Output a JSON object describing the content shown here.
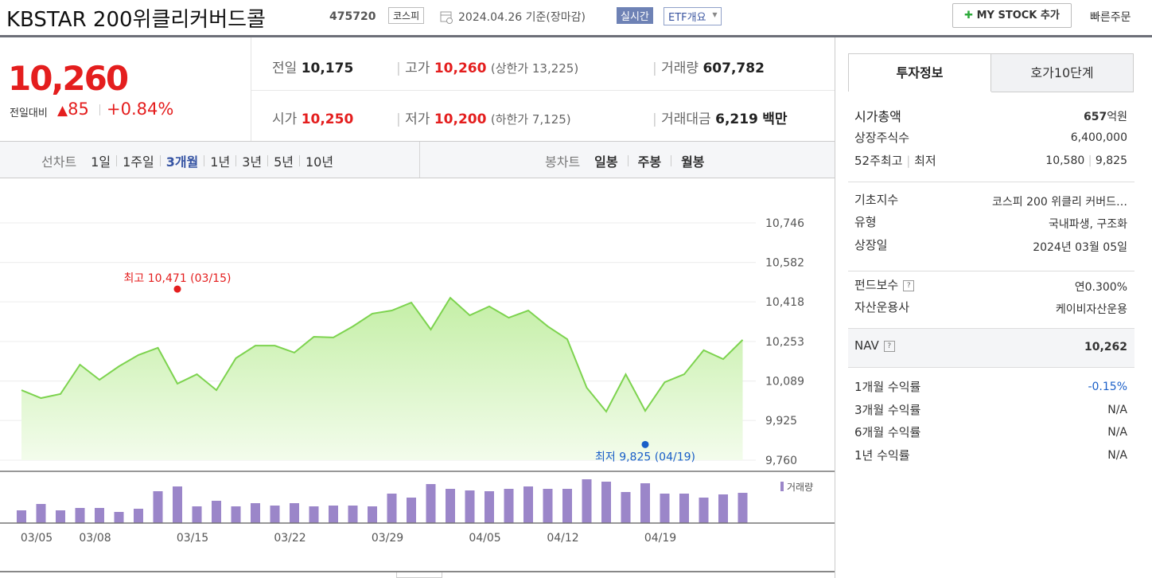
{
  "header": {
    "title": "KBSTAR 200위클리커버드콜",
    "code": "475720",
    "market": "코스피",
    "date": "2024.04.26 기준(장마감)",
    "realtime": "실시간",
    "overview": "ETF개요",
    "mystock": "MY STOCK 추가",
    "quick_order": "빠른주문"
  },
  "quote": {
    "price": "10,260",
    "change_label": "전일대비",
    "change": "85",
    "change_rate": "+0.84%",
    "items": [
      {
        "label": "전일",
        "value": "10,175"
      },
      {
        "label": "고가",
        "value": "10,260",
        "note": "(상한가 13,225)"
      },
      {
        "label": "거래량",
        "value": "607,782"
      },
      {
        "label": "시가",
        "value": "10,250"
      },
      {
        "label": "저가",
        "value": "10,200",
        "note": "(하한가 7,125)"
      },
      {
        "label": "거래대금",
        "value": "6,219",
        "unit": "백만"
      }
    ]
  },
  "tabs": {
    "line_label": "선차트",
    "periods": [
      "1일",
      "1주일",
      "3개월",
      "1년",
      "3년",
      "5년",
      "10년"
    ],
    "selected": "3개월",
    "candle_label": "봉차트",
    "candles": [
      "일봉",
      "주봉",
      "월봉"
    ]
  },
  "chart_data": {
    "type": "area",
    "categories": [
      "03/05",
      null,
      null,
      "03/08",
      null,
      null,
      null,
      null,
      "03/15",
      null,
      null,
      null,
      null,
      "03/22",
      null,
      null,
      null,
      null,
      "03/29",
      null,
      null,
      null,
      null,
      "04/05",
      null,
      null,
      null,
      "04/12",
      null,
      null,
      null,
      null,
      "04/19",
      null,
      null,
      null,
      null,
      null
    ],
    "series": [
      {
        "color": "#7dd34f",
        "values": [
          10051,
          10018,
          10035,
          10157,
          10094,
          10150,
          10197,
          10227,
          10078,
          10117,
          10051,
          10184,
          10236,
          10236,
          10207,
          10273,
          10270,
          10316,
          10369,
          10382,
          10415,
          10303,
          10435,
          10362,
          10399,
          10352,
          10382,
          10316,
          10263,
          10061,
          9962,
          10117,
          9965,
          10084,
          10117,
          10217,
          10180,
          10260
        ]
      }
    ],
    "volume": {
      "name": "거래량",
      "color": "#9b86c9",
      "values": [
        256000,
        384000,
        256000,
        304000,
        304000,
        224000,
        288000,
        640000,
        736000,
        336000,
        448000,
        336000,
        400000,
        352000,
        400000,
        336000,
        352000,
        352000,
        336000,
        592000,
        512000,
        784000,
        688000,
        656000,
        640000,
        688000,
        736000,
        688000,
        688000,
        880000,
        832000,
        624000,
        800000,
        592000,
        592000,
        512000,
        576000,
        607782
      ]
    },
    "ylim": [
      9760,
      10746
    ],
    "yticks": [
      {
        "value": 9760,
        "label": "9,760"
      },
      {
        "value": 9925,
        "label": "9,925"
      },
      {
        "value": 10089,
        "label": "10,089"
      },
      {
        "value": 10253,
        "label": "10,253"
      },
      {
        "value": 10418,
        "label": "10,418"
      },
      {
        "value": 10582,
        "label": "10,582"
      },
      {
        "value": 10746,
        "label": "10,746"
      }
    ],
    "grid": true,
    "annotations": [
      {
        "text": "최고 10,471 (03/15)",
        "x": "03/15",
        "value": 10471,
        "color": "#e41e1e"
      },
      {
        "text": "최저 9,825 (04/19)",
        "x": "04/19",
        "value": 9825,
        "color": "#1a5fc8"
      }
    ]
  },
  "side": {
    "tabs": [
      "투자정보",
      "호가10단계"
    ],
    "market_cap": {
      "label": "시가총액",
      "value": "657",
      "unit": "억원"
    },
    "shares": {
      "label": "상장주식수",
      "value": "6,400,000"
    },
    "week52": {
      "label_high": "52주최고",
      "label_low": "최저",
      "high": "10,580",
      "low": "9,825"
    },
    "base_index": {
      "label": "기초지수",
      "value": "코스피 200 위클리 커버드…"
    },
    "kind": {
      "label": "유형",
      "value": "국내파생, 구조화"
    },
    "listed": {
      "label": "상장일",
      "value": "2024년 03월 05일"
    },
    "fee": {
      "label": "펀드보수",
      "value": "연0.300%"
    },
    "manager": {
      "label": "자산운용사",
      "value": "케이비자산운용"
    },
    "nav": {
      "label": "NAV",
      "value": "10,262"
    },
    "returns": [
      {
        "label": "1개월 수익률",
        "value": "-0.15%"
      },
      {
        "label": "3개월 수익률",
        "value": "N/A"
      },
      {
        "label": "6개월 수익률",
        "value": "N/A"
      },
      {
        "label": "1년 수익률",
        "value": "N/A"
      }
    ]
  }
}
